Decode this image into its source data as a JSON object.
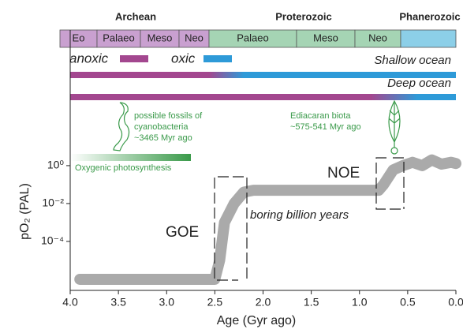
{
  "chart_data": {
    "type": "line",
    "eons": [
      "Archean",
      "Proterozoic",
      "Phanerozoic"
    ],
    "eras": [
      "Eo",
      "Palaeo",
      "Meso",
      "Neo",
      "Palaeo",
      "Meso",
      "Neo"
    ],
    "legend": {
      "anoxic": "anoxic",
      "oxic": "oxic"
    },
    "ocean_labels": [
      "Shallow ocean",
      "Deep ocean"
    ],
    "annotations": {
      "fossils": [
        "possible fossils of",
        "cyanobacteria",
        "~3465 Myr ago"
      ],
      "ediacaran": [
        "Ediacaran biota",
        "~575-541 Myr ago"
      ],
      "photosynthesis": "Oxygenic photosynthesis",
      "goe": "GOE",
      "noe": "NOE",
      "boring": "boring billion years"
    },
    "xlabel": "Age (Gyr ago)",
    "ylabel": "pO₂ (PAL)",
    "xlim": [
      4.0,
      0.0
    ],
    "xticks": [
      {
        "value": 4.0,
        "label": "4.0"
      },
      3.5,
      {
        "value": 3.0,
        "label": "3.0"
      },
      2.5,
      {
        "value": 2.0,
        "label": "2.0"
      },
      1.5,
      {
        "value": 1.0,
        "label": "1.0"
      },
      0.5,
      {
        "value": 0.0,
        "label": "0.0"
      }
    ],
    "ylim": [
      2.6e-07,
      120
    ],
    "log_y": true,
    "yticks": [
      {
        "value": 1,
        "label": "10⁰"
      },
      {
        "value": 0.01,
        "label": "10⁻²"
      },
      {
        "value": 0.0001,
        "label": "10⁻⁴"
      }
    ],
    "x": [
      3.9,
      2.5,
      2.45,
      2.4,
      2.3,
      2.2,
      2.1,
      1.5,
      0.8,
      0.75,
      0.65,
      0.55,
      0.45,
      0.35,
      0.25,
      0.15,
      0.05,
      0.0
    ],
    "series": [
      {
        "color": "#aaaaaa",
        "values": [
          1e-06,
          1e-06,
          1e-05,
          0.001,
          0.01,
          0.04,
          0.05,
          0.05,
          0.05,
          0.1,
          0.6,
          1,
          1.5,
          1,
          2,
          1.2,
          1.5,
          1.3
        ]
      }
    ]
  }
}
